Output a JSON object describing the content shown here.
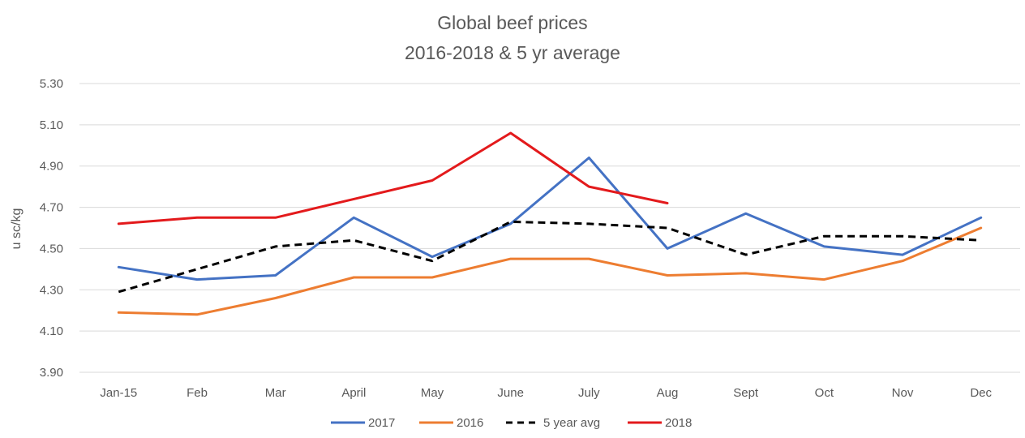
{
  "chart_data": {
    "type": "line",
    "title": "Global beef prices",
    "subtitle": "2016-2018 & 5 yr average",
    "ylabel": "u sc/kg",
    "xlabel": "",
    "categories": [
      "Jan-15",
      "Feb",
      "Mar",
      "April",
      "May",
      "June",
      "July",
      "Aug",
      "Sept",
      "Oct",
      "Nov",
      "Dec"
    ],
    "yticks": [
      "3.90",
      "4.10",
      "4.30",
      "4.50",
      "4.70",
      "4.90",
      "5.10",
      "5.30"
    ],
    "ylim": [
      3.9,
      5.3
    ],
    "grid": true,
    "legend_position": "bottom",
    "series": [
      {
        "name": "2017",
        "color": "#4472c4",
        "dash": "solid",
        "values": [
          4.41,
          4.35,
          4.37,
          4.65,
          4.46,
          4.62,
          4.94,
          4.5,
          4.67,
          4.51,
          4.47,
          4.65
        ]
      },
      {
        "name": "2016",
        "color": "#ed7d31",
        "dash": "solid",
        "values": [
          4.19,
          4.18,
          4.26,
          4.36,
          4.36,
          4.45,
          4.45,
          4.37,
          4.38,
          4.35,
          4.44,
          4.6
        ]
      },
      {
        "name": "5 year avg",
        "color": "#000000",
        "dash": "dashed",
        "values": [
          4.29,
          4.4,
          4.51,
          4.54,
          4.44,
          4.63,
          4.62,
          4.6,
          4.47,
          4.56,
          4.56,
          4.54
        ]
      },
      {
        "name": "2018",
        "color": "#e31a1c",
        "dash": "solid",
        "values": [
          4.62,
          4.65,
          4.65,
          4.74,
          4.83,
          5.06,
          4.8,
          4.72,
          null,
          null,
          null,
          null
        ]
      }
    ]
  }
}
